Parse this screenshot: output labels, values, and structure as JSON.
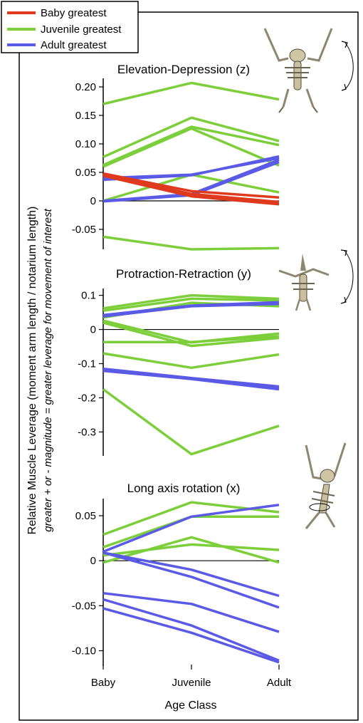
{
  "legend": [
    {
      "label": "Baby greatest",
      "color": "#e03a1e"
    },
    {
      "label": "Juvenile greatest",
      "color": "#7ccf3a"
    },
    {
      "label": "Adult greatest",
      "color": "#5a5ae6"
    }
  ],
  "y_axis_label": "Relative Muscle Leverage (moment arm length / notarium length)",
  "y_axis_sublabel": "greater + or - magnitude = greater leverage for movement of interest",
  "x_axis_label": "Age Class",
  "x_categories": [
    "Baby",
    "Juvenile",
    "Adult"
  ],
  "chart_data": [
    {
      "type": "line",
      "title": "Elevation-Depression (z)",
      "x": [
        "Baby",
        "Juvenile",
        "Adult"
      ],
      "ylim": [
        -0.085,
        0.215
      ],
      "yticks": [
        0.2,
        0.15,
        0.1,
        0.05,
        0,
        -0.05
      ],
      "ytick_labels": [
        "0.20",
        "0.15",
        "0.10",
        "0.05",
        "0",
        "-0.05"
      ],
      "series": [
        {
          "group": "Juvenile greatest",
          "values": [
            0.17,
            0.207,
            0.178
          ]
        },
        {
          "group": "Juvenile greatest",
          "values": [
            0.077,
            0.146,
            0.105
          ]
        },
        {
          "group": "Juvenile greatest",
          "values": [
            0.063,
            0.13,
            0.098
          ]
        },
        {
          "group": "Juvenile greatest",
          "values": [
            0.06,
            0.127,
            0.062
          ]
        },
        {
          "group": "Juvenile greatest",
          "values": [
            0.0,
            0.046,
            0.015
          ]
        },
        {
          "group": "Juvenile greatest",
          "values": [
            -0.063,
            -0.085,
            -0.083
          ]
        },
        {
          "group": "Adult greatest",
          "values": [
            0.04,
            0.046,
            0.075
          ]
        },
        {
          "group": "Adult greatest",
          "values": [
            0.037,
            0.045,
            0.078
          ]
        },
        {
          "group": "Adult greatest",
          "values": [
            -0.001,
            0.01,
            0.068
          ]
        },
        {
          "group": "Adult greatest",
          "values": [
            0.0,
            0.012,
            0.072
          ]
        },
        {
          "group": "Baby greatest",
          "values": [
            0.048,
            0.017,
            0.006
          ]
        },
        {
          "group": "Baby greatest",
          "values": [
            0.046,
            0.012,
            -0.002
          ]
        },
        {
          "group": "Baby greatest",
          "values": [
            0.044,
            0.008,
            -0.006
          ]
        }
      ]
    },
    {
      "type": "line",
      "title": "Protraction-Retraction (y)",
      "x": [
        "Baby",
        "Juvenile",
        "Adult"
      ],
      "ylim": [
        -0.37,
        0.12
      ],
      "yticks": [
        0.1,
        0,
        -0.1,
        -0.2,
        -0.3
      ],
      "ytick_labels": [
        "0.1",
        "0",
        "-0.1",
        "-0.2",
        "-0.3"
      ],
      "series": [
        {
          "group": "Juvenile greatest",
          "values": [
            0.062,
            0.1,
            0.09
          ]
        },
        {
          "group": "Juvenile greatest",
          "values": [
            0.055,
            0.09,
            0.085
          ]
        },
        {
          "group": "Juvenile greatest",
          "values": [
            0.035,
            0.078,
            0.068
          ]
        },
        {
          "group": "Juvenile greatest",
          "values": [
            0.026,
            -0.038,
            -0.012
          ]
        },
        {
          "group": "Juvenile greatest",
          "values": [
            0.02,
            -0.048,
            -0.025
          ]
        },
        {
          "group": "Juvenile greatest",
          "values": [
            -0.037,
            -0.037,
            -0.02
          ]
        },
        {
          "group": "Juvenile greatest",
          "values": [
            -0.07,
            -0.112,
            -0.073
          ]
        },
        {
          "group": "Juvenile greatest",
          "values": [
            -0.175,
            -0.365,
            -0.282
          ]
        },
        {
          "group": "Adult greatest",
          "values": [
            0.042,
            0.07,
            0.08
          ]
        },
        {
          "group": "Adult greatest",
          "values": [
            0.038,
            0.068,
            0.075
          ]
        },
        {
          "group": "Adult greatest",
          "values": [
            -0.115,
            -0.142,
            -0.167
          ]
        },
        {
          "group": "Adult greatest",
          "values": [
            -0.118,
            -0.143,
            -0.172
          ]
        },
        {
          "group": "Adult greatest",
          "values": [
            -0.121,
            -0.145,
            -0.175
          ]
        }
      ]
    },
    {
      "type": "line",
      "title": "Long axis rotation (x)",
      "x": [
        "Baby",
        "Juvenile",
        "Adult"
      ],
      "ylim": [
        -0.117,
        0.069
      ],
      "yticks": [
        0.05,
        0,
        -0.05,
        -0.1
      ],
      "ytick_labels": [
        "0.05",
        "0",
        "-0.05",
        "-0.10"
      ],
      "series": [
        {
          "group": "Juvenile greatest",
          "values": [
            0.029,
            0.065,
            0.054
          ]
        },
        {
          "group": "Juvenile greatest",
          "values": [
            0.015,
            0.049,
            0.049
          ]
        },
        {
          "group": "Juvenile greatest",
          "values": [
            0.006,
            0.018,
            0.012
          ]
        },
        {
          "group": "Juvenile greatest",
          "values": [
            -0.002,
            0.026,
            -0.002
          ]
        },
        {
          "group": "Adult greatest",
          "values": [
            0.01,
            0.049,
            0.062
          ]
        },
        {
          "group": "Adult greatest",
          "values": [
            0.009,
            -0.01,
            -0.039
          ]
        },
        {
          "group": "Adult greatest",
          "values": [
            0.009,
            -0.018,
            -0.052
          ]
        },
        {
          "group": "Adult greatest",
          "values": [
            -0.036,
            -0.048,
            -0.079
          ]
        },
        {
          "group": "Adult greatest",
          "values": [
            -0.043,
            -0.072,
            -0.111
          ]
        },
        {
          "group": "Adult greatest",
          "values": [
            -0.053,
            -0.08,
            -0.113
          ]
        }
      ]
    }
  ],
  "illustrations": [
    {
      "icon": "pterosaur-skeleton-elevation-icon"
    },
    {
      "icon": "pterosaur-skeleton-protraction-icon"
    },
    {
      "icon": "pterosaur-skeleton-rotation-icon"
    }
  ]
}
